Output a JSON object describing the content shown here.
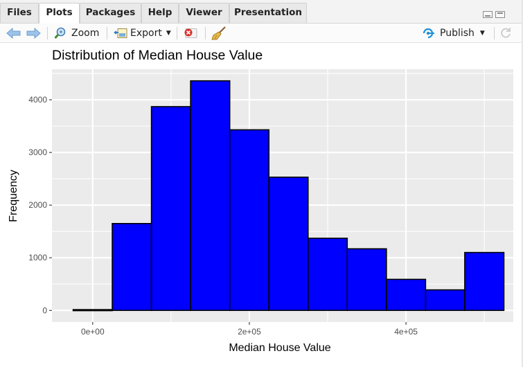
{
  "tabs": [
    {
      "label": "Files",
      "active": false
    },
    {
      "label": "Plots",
      "active": true
    },
    {
      "label": "Packages",
      "active": false
    },
    {
      "label": "Help",
      "active": false
    },
    {
      "label": "Viewer",
      "active": false
    },
    {
      "label": "Presentation",
      "active": false
    }
  ],
  "toolbar": {
    "zoom_label": "Zoom",
    "export_label": "Export",
    "publish_label": "Publish",
    "icons": [
      "back-arrow-icon",
      "forward-arrow-icon",
      "zoom-icon",
      "export-icon",
      "remove-plot-icon",
      "broom-icon",
      "publish-icon",
      "refresh-icon"
    ]
  },
  "colors": {
    "bar_fill": "#0000ff",
    "panel_bg": "#ebebeb",
    "publish_accent": "#1f8fd6",
    "remove_red": "#d9302a"
  },
  "chart_data": {
    "type": "bar",
    "title": "Distribution of Median House Value",
    "xlabel": "Median House Value",
    "ylabel": "Frequency",
    "bin_width": 50000,
    "x": [
      0,
      50000,
      100000,
      150000,
      200000,
      250000,
      300000,
      350000,
      400000,
      450000,
      500000
    ],
    "values": [
      15,
      1650,
      3870,
      4360,
      3430,
      2530,
      1370,
      1170,
      590,
      390,
      1100
    ],
    "xlim": [
      -52000,
      537000
    ],
    "ylim": [
      -220,
      4580
    ],
    "x_ticks": [
      0,
      200000,
      400000
    ],
    "x_tick_labels": [
      "0e+00",
      "2e+05",
      "4e+05"
    ],
    "y_ticks": [
      0,
      1000,
      2000,
      3000,
      4000
    ],
    "y_tick_labels": [
      "0",
      "1000",
      "2000",
      "3000",
      "4000"
    ],
    "grid": true
  }
}
